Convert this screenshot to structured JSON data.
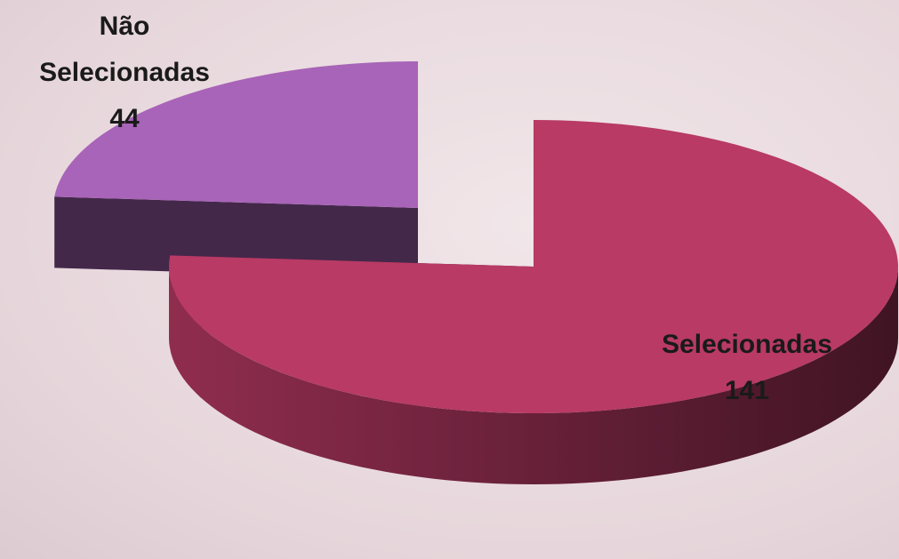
{
  "chart_data": {
    "type": "pie",
    "categories": [
      "Não Selecionadas",
      "Selecionadas"
    ],
    "values": [
      44,
      141
    ],
    "colors": [
      "#a864b8",
      "#b83a65"
    ]
  }
}
